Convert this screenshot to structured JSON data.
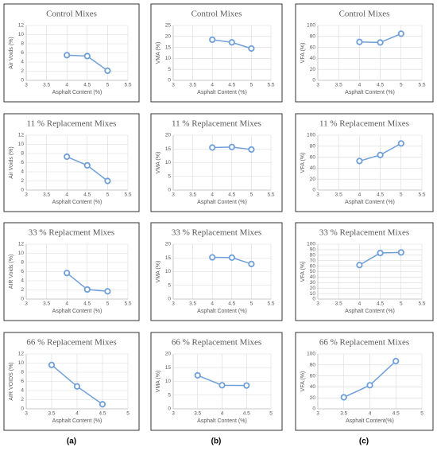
{
  "chart_data": [
    {
      "type": "line",
      "title": "Control Mixes",
      "x_label": "Asphalt Content (%)",
      "y_label": "Air Voids (%)",
      "x": [
        4,
        4.5,
        5
      ],
      "values": [
        5.5,
        5.3,
        2.1
      ],
      "color": "#6f9fd8",
      "xlim": [
        3,
        5.5
      ],
      "xticks": [
        3,
        3.5,
        4,
        4.5,
        5,
        5.5
      ],
      "ylim": [
        0,
        12
      ],
      "yticks": [
        0,
        2,
        4,
        6,
        8,
        10,
        12
      ],
      "grid": true
    },
    {
      "type": "line",
      "title": "Control Mixes",
      "x_label": "Asphalt Content (%)",
      "y_label": "VMA (%)",
      "x": [
        4,
        4.5,
        5
      ],
      "values": [
        18.5,
        17.3,
        14.5
      ],
      "color": "#6f9fd8",
      "xlim": [
        3,
        5.5
      ],
      "xticks": [
        3,
        3.5,
        4,
        4.5,
        5,
        5.5
      ],
      "ylim": [
        0,
        25
      ],
      "yticks": [
        0,
        5,
        10,
        15,
        20,
        25
      ],
      "grid": true
    },
    {
      "type": "line",
      "title": "Control Mixes",
      "x_label": "Asphalt Content (%)",
      "y_label": "VFA (%)",
      "x": [
        4,
        4.5,
        5
      ],
      "values": [
        70,
        69,
        85
      ],
      "color": "#6f9fd8",
      "xlim": [
        3,
        5.5
      ],
      "xticks": [
        3,
        3.5,
        4,
        4.5,
        5,
        5.5
      ],
      "ylim": [
        0,
        100
      ],
      "yticks": [
        0,
        20,
        40,
        60,
        80,
        100
      ],
      "grid": true
    },
    {
      "type": "line",
      "title": "11 % Replacement Mixes",
      "x_label": "Asphalt Content (%)",
      "y_label": "Air Voids (%)",
      "x": [
        4,
        4.5,
        5
      ],
      "values": [
        7.3,
        5.4,
        2.0
      ],
      "color": "#6f9fd8",
      "xlim": [
        3,
        5.5
      ],
      "xticks": [
        3,
        3.5,
        4,
        4.5,
        5,
        5.5
      ],
      "ylim": [
        0,
        12
      ],
      "yticks": [
        0,
        2,
        4,
        6,
        8,
        10,
        12
      ],
      "grid": true
    },
    {
      "type": "line",
      "title": "11 % Replacement Mixes",
      "x_label": "Asphalt Content (%)",
      "y_label": "VMA (%)",
      "x": [
        4,
        4.5,
        5
      ],
      "values": [
        15.5,
        15.7,
        14.8
      ],
      "color": "#6f9fd8",
      "xlim": [
        3,
        5.5
      ],
      "xticks": [
        3,
        3.5,
        4,
        4.5,
        5,
        5.5
      ],
      "ylim": [
        0,
        20
      ],
      "yticks": [
        0,
        5,
        10,
        15,
        20
      ],
      "grid": true
    },
    {
      "type": "line",
      "title": "11 % Replacement Mixes",
      "x_label": "Asphalt Content (%)",
      "y_label": "VFA (%)",
      "x": [
        4,
        4.5,
        5
      ],
      "values": [
        53,
        64,
        85
      ],
      "color": "#6f9fd8",
      "xlim": [
        3,
        5.5
      ],
      "xticks": [
        3,
        3.5,
        4,
        4.5,
        5,
        5.5
      ],
      "ylim": [
        0,
        100
      ],
      "yticks": [
        0,
        20,
        40,
        60,
        80,
        100
      ],
      "grid": true
    },
    {
      "type": "line",
      "title": "33 % Replacment Mixes",
      "x_label": "Asphalt Content (%)",
      "y_label": "AIR Voids (%)",
      "x": [
        4,
        4.5,
        5
      ],
      "values": [
        5.7,
        2.1,
        1.7
      ],
      "color": "#6f9fd8",
      "xlim": [
        3,
        5.5
      ],
      "xticks": [
        3,
        3.5,
        4,
        4.5,
        5,
        5.5
      ],
      "ylim": [
        0,
        12
      ],
      "yticks": [
        0,
        2,
        4,
        6,
        8,
        10,
        12
      ],
      "grid": true
    },
    {
      "type": "line",
      "title": "33 % Replacement Mixes",
      "x_label": "Asphalt Content (%)",
      "y_label": "VMA (%)",
      "x": [
        4,
        4.5,
        5
      ],
      "values": [
        15.2,
        15.1,
        12.8
      ],
      "color": "#6f9fd8",
      "xlim": [
        3,
        5.5
      ],
      "xticks": [
        3,
        3.5,
        4,
        4.5,
        5,
        5.5
      ],
      "ylim": [
        0,
        20
      ],
      "yticks": [
        0,
        5,
        10,
        15,
        20
      ],
      "grid": true
    },
    {
      "type": "line",
      "title": "33 % Replacement Mixes",
      "x_label": "Asphalt Content (%)",
      "y_label": "VFA (%)",
      "x": [
        4,
        4.5,
        5
      ],
      "values": [
        62,
        84,
        85
      ],
      "color": "#6f9fd8",
      "xlim": [
        3,
        5.5
      ],
      "xticks": [
        3,
        3.5,
        4,
        4.5,
        5,
        5.5
      ],
      "ylim": [
        0,
        100
      ],
      "yticks": [
        0,
        10,
        20,
        30,
        40,
        50,
        60,
        70,
        80,
        90,
        100
      ],
      "grid": true
    },
    {
      "type": "line",
      "title": "66 % Replacement Mixes",
      "x_label": "Asphalt Content (%)",
      "y_label": "AIR VOIDS (%)",
      "x": [
        3.5,
        4,
        4.5
      ],
      "values": [
        9.6,
        4.9,
        1.0
      ],
      "color": "#6f9fd8",
      "xlim": [
        3,
        5
      ],
      "xticks": [
        3,
        3.5,
        4,
        4.5,
        5
      ],
      "ylim": [
        0,
        12
      ],
      "yticks": [
        0,
        2,
        4,
        6,
        8,
        10,
        12
      ],
      "grid": true
    },
    {
      "type": "line",
      "title": "66 % Replacement Mixes",
      "x_label": "Asphalt Content (%)",
      "y_label": "VMA (%)",
      "x": [
        3.5,
        4,
        4.5
      ],
      "values": [
        12.2,
        8.6,
        8.5
      ],
      "color": "#6f9fd8",
      "xlim": [
        3,
        5
      ],
      "xticks": [
        3,
        3.5,
        4,
        4.5,
        5
      ],
      "ylim": [
        0,
        20
      ],
      "yticks": [
        0,
        5,
        10,
        15,
        20
      ],
      "grid": true
    },
    {
      "type": "line",
      "title": "66 % Replacement Mixes",
      "x_label": "Asphalt Content(%)",
      "y_label": "VFA (%)",
      "x": [
        3.5,
        4,
        4.5
      ],
      "values": [
        21,
        43,
        87
      ],
      "color": "#6f9fd8",
      "xlim": [
        3,
        5
      ],
      "xticks": [
        3,
        3.5,
        4,
        4.5,
        5
      ],
      "ylim": [
        0,
        100
      ],
      "yticks": [
        0,
        20,
        40,
        60,
        80,
        100
      ],
      "grid": true
    }
  ],
  "panel_labels": [
    "(a)",
    "(b)",
    "(c)"
  ]
}
